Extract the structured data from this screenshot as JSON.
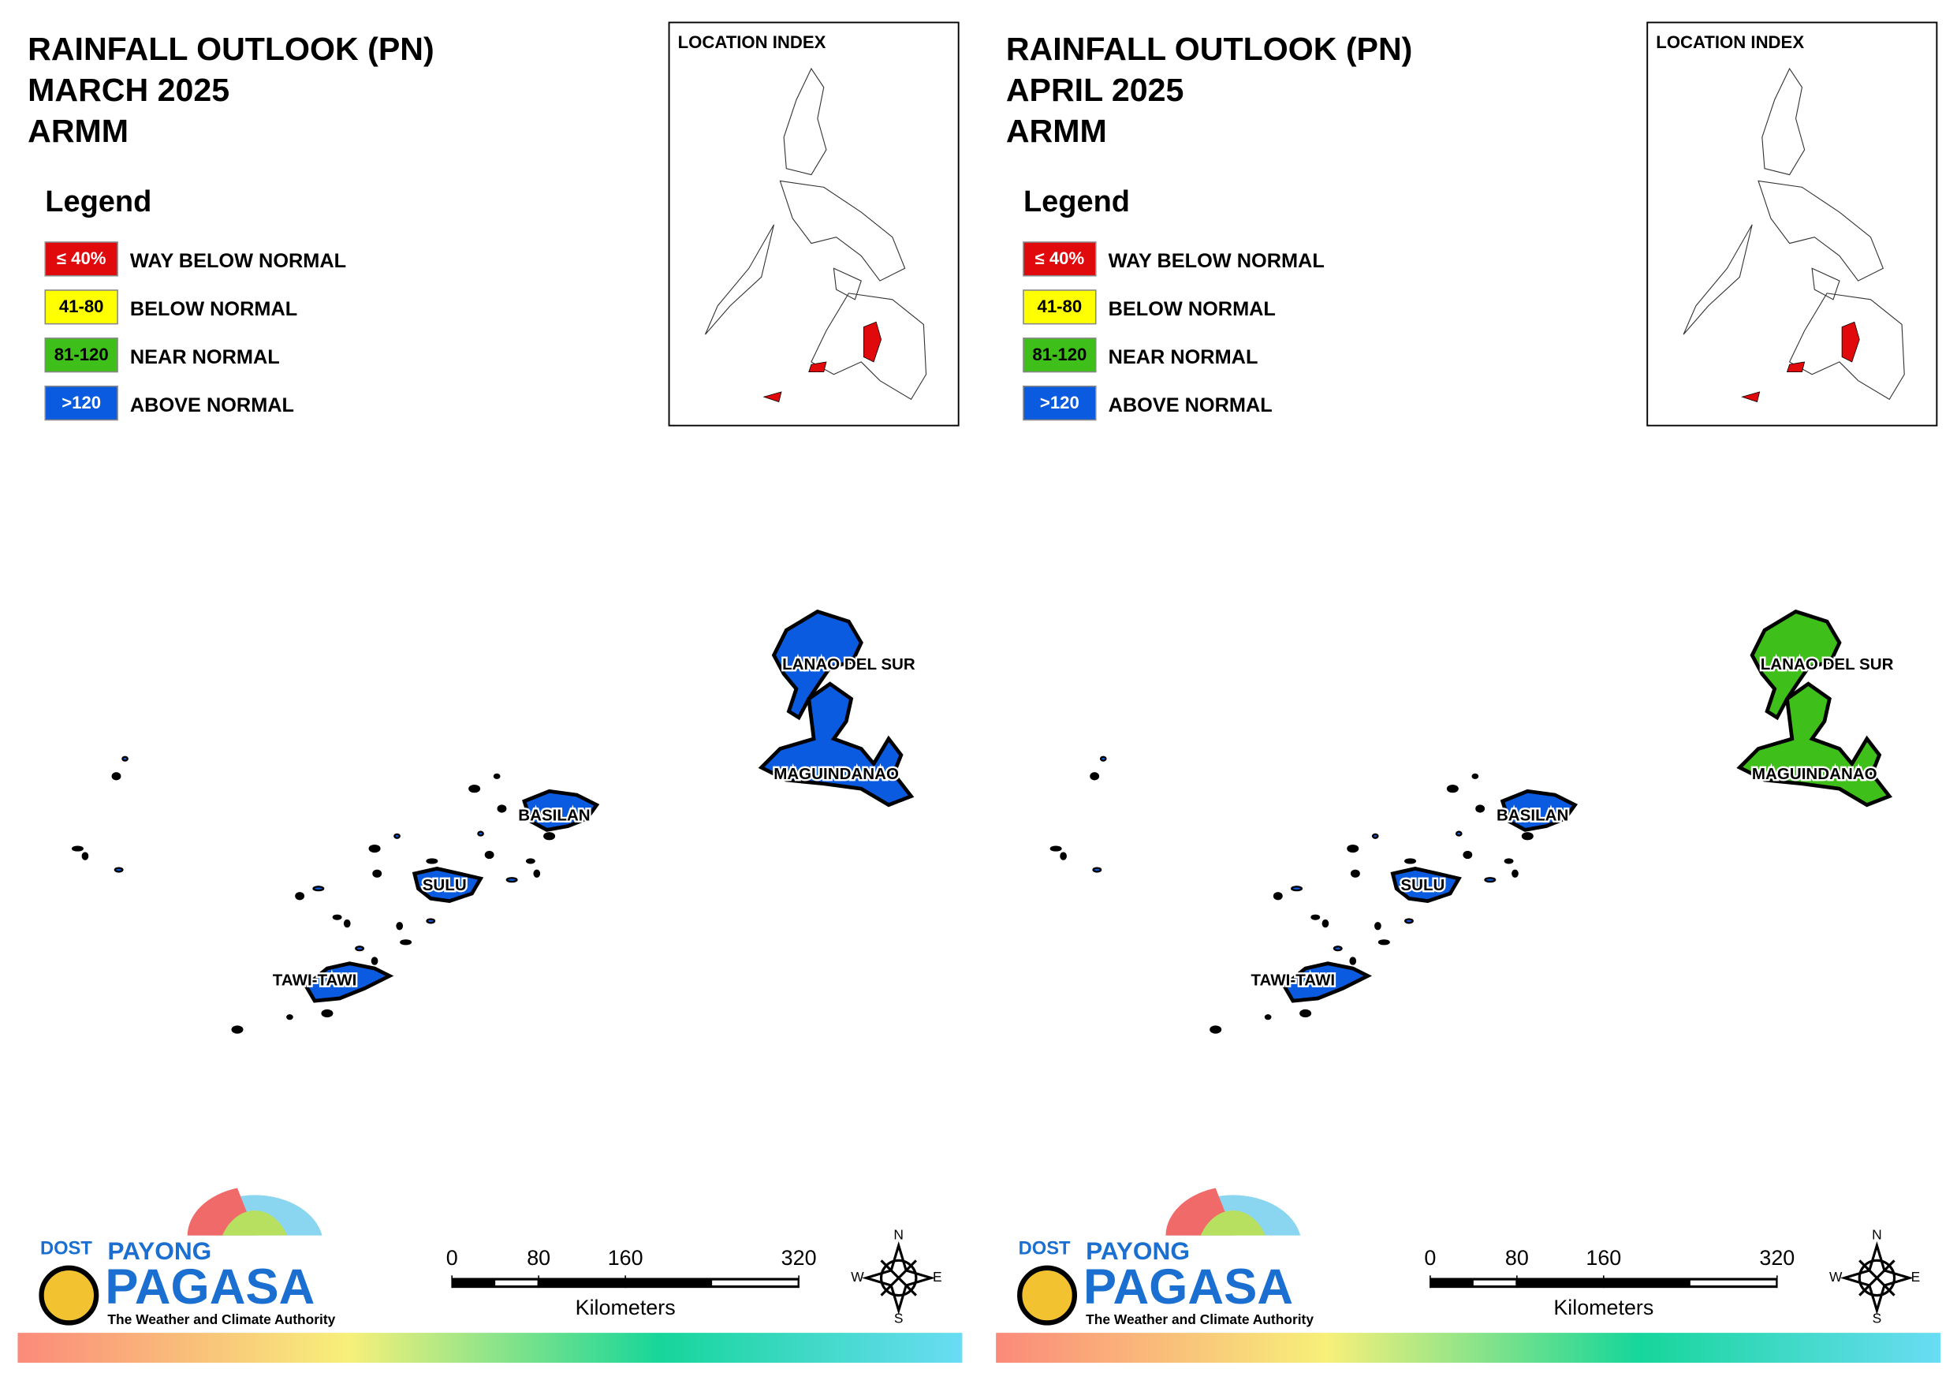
{
  "panels": [
    {
      "title": [
        "RAINFALL OUTLOOK (PN)",
        "MARCH 2025",
        "ARMM"
      ],
      "legend": {
        "title": "Legend",
        "items": [
          {
            "range": "≤ 40%",
            "label": "WAY BELOW NORMAL",
            "color": "#e0090c"
          },
          {
            "range": "41-80",
            "label": "BELOW NORMAL",
            "color": "#ffff00"
          },
          {
            "range": "81-120",
            "label": "NEAR NORMAL",
            "color": "#3fbf1a"
          },
          {
            "range": ">120",
            "label": "ABOVE NORMAL",
            "color": "#0a5be0"
          }
        ]
      },
      "location_index": "LOCATION INDEX",
      "regions": [
        {
          "name": "LANAO DEL SUR",
          "color": "#0a5be0"
        },
        {
          "name": "MAGUINDANAO",
          "color": "#0a5be0"
        },
        {
          "name": "BASILAN",
          "color": "#0a5be0"
        },
        {
          "name": "SULU",
          "color": "#0a5be0"
        },
        {
          "name": "TAWI-TAWI",
          "color": "#0a5be0"
        }
      ],
      "scale_bar": {
        "ticks": [
          0,
          80,
          160,
          320
        ],
        "unit": "Kilometers"
      },
      "compass": [
        "N",
        "E",
        "S",
        "W"
      ],
      "logo": {
        "agency": "DOST",
        "brand_top": "PAYONG",
        "brand": "PAGASA",
        "tagline": "The Weather and Climate Authority"
      }
    },
    {
      "title": [
        "RAINFALL OUTLOOK (PN)",
        "APRIL 2025",
        "ARMM"
      ],
      "legend": {
        "title": "Legend",
        "items": [
          {
            "range": "≤ 40%",
            "label": "WAY BELOW NORMAL",
            "color": "#e0090c"
          },
          {
            "range": "41-80",
            "label": "BELOW NORMAL",
            "color": "#ffff00"
          },
          {
            "range": "81-120",
            "label": "NEAR NORMAL",
            "color": "#3fbf1a"
          },
          {
            "range": ">120",
            "label": "ABOVE NORMAL",
            "color": "#0a5be0"
          }
        ]
      },
      "location_index": "LOCATION INDEX",
      "regions": [
        {
          "name": "LANAO DEL SUR",
          "color": "#3fbf1a"
        },
        {
          "name": "MAGUINDANAO",
          "color": "#3fbf1a"
        },
        {
          "name": "BASILAN",
          "color": "#0a5be0"
        },
        {
          "name": "SULU",
          "color": "#0a5be0"
        },
        {
          "name": "TAWI-TAWI",
          "color": "#0a5be0"
        }
      ],
      "scale_bar": {
        "ticks": [
          0,
          80,
          160,
          320
        ],
        "unit": "Kilometers"
      },
      "compass": [
        "N",
        "E",
        "S",
        "W"
      ],
      "logo": {
        "agency": "DOST",
        "brand_top": "PAYONG",
        "brand": "PAGASA",
        "tagline": "The Weather and Climate Authority"
      }
    }
  ]
}
